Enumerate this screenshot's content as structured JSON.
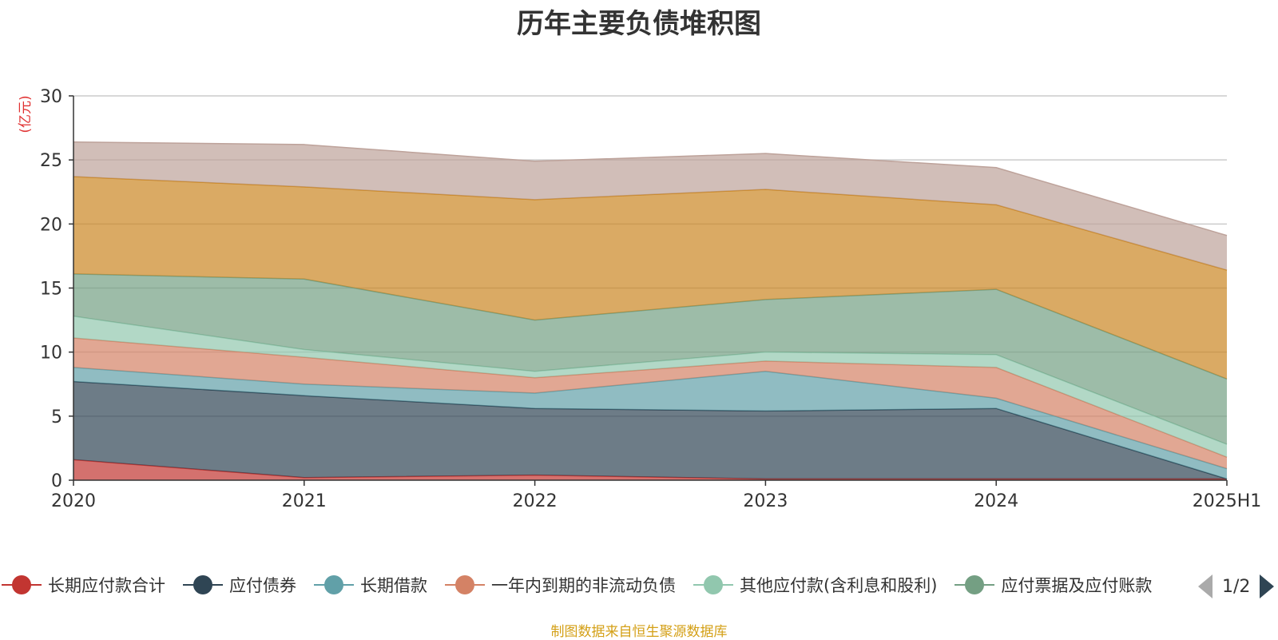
{
  "title": "历年主要负债堆积图",
  "source_note": "制图数据来自恒生聚源数据库",
  "pager": {
    "text": "1/2"
  },
  "chart_data": {
    "type": "area",
    "stacked": true,
    "title": "历年主要负债堆积图",
    "ylabel": "(亿元)",
    "ylim": [
      0,
      30
    ],
    "y_ticks": [
      0,
      5,
      10,
      15,
      20,
      25,
      30
    ],
    "grid": true,
    "legend_placement": "bottom",
    "categories": [
      "2020",
      "2021",
      "2022",
      "2023",
      "2024",
      "2025H1"
    ],
    "series": [
      {
        "name": "长期应付款合计",
        "color": "#c23531",
        "values": [
          1.6,
          0.2,
          0.4,
          0.1,
          0.1,
          0.1
        ]
      },
      {
        "name": "应付债券",
        "color": "#2f4554",
        "values": [
          6.1,
          6.4,
          5.2,
          5.3,
          5.5,
          0.0
        ]
      },
      {
        "name": "长期借款",
        "color": "#61a0a8",
        "values": [
          1.1,
          0.9,
          1.2,
          3.1,
          0.8,
          0.8
        ]
      },
      {
        "name": "一年内到期的非流动负债",
        "color": "#d48265",
        "values": [
          2.3,
          2.1,
          1.2,
          0.8,
          2.4,
          0.9
        ]
      },
      {
        "name": "其他应付款(含利息和股利)",
        "color": "#91c7ae",
        "values": [
          1.7,
          0.6,
          0.5,
          0.7,
          1.0,
          1.0
        ]
      },
      {
        "name": "应付票据及应付账款",
        "color": "#749f83",
        "values": [
          3.3,
          5.5,
          4.0,
          4.1,
          5.1,
          5.1
        ]
      },
      {
        "name": "",
        "color": "#ca8622",
        "values": [
          7.6,
          7.2,
          9.4,
          8.6,
          6.6,
          8.5
        ]
      },
      {
        "name": "",
        "color": "#bda29a",
        "values": [
          2.7,
          3.3,
          3.0,
          2.8,
          2.9,
          2.7
        ]
      }
    ]
  }
}
